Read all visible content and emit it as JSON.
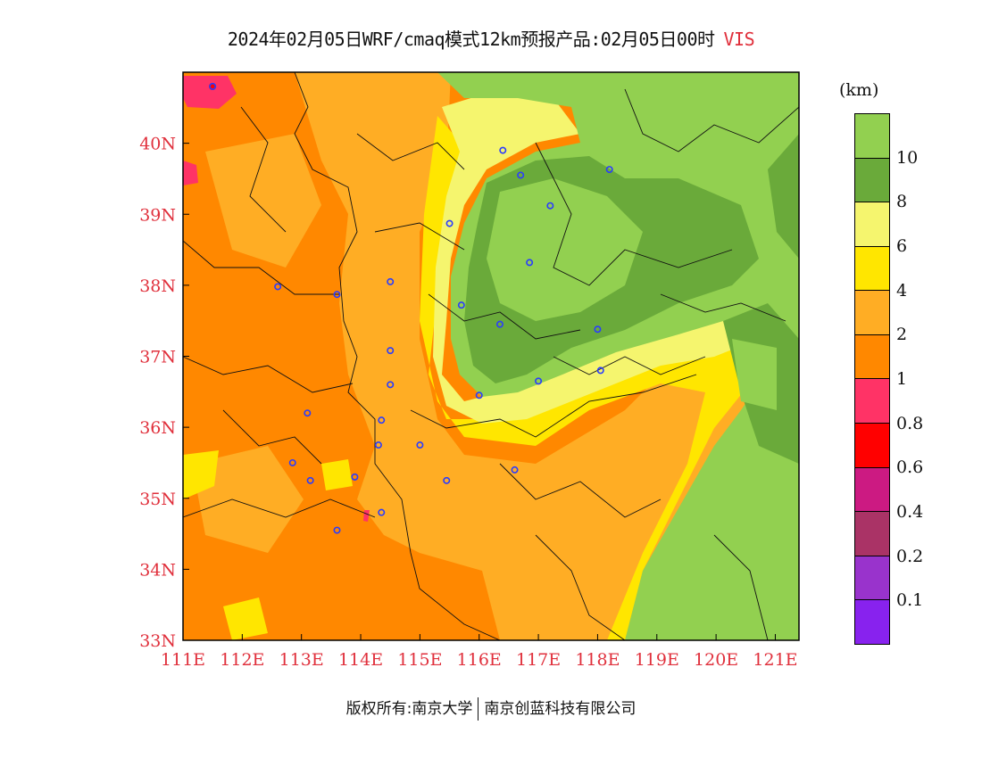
{
  "title": {
    "text": "2024年02月05日WRF/cmaq模式12km预报产品:02月05日00时",
    "variable": "VIS",
    "variable_color": "#e0303c"
  },
  "map": {
    "lon_range": [
      111,
      121.4
    ],
    "lat_range": [
      33,
      41
    ],
    "x_ticks": [
      {
        "value": 111,
        "label": "111E"
      },
      {
        "value": 112,
        "label": "112E"
      },
      {
        "value": 113,
        "label": "113E"
      },
      {
        "value": 114,
        "label": "114E"
      },
      {
        "value": 115,
        "label": "115E"
      },
      {
        "value": 116,
        "label": "116E"
      },
      {
        "value": 117,
        "label": "117E"
      },
      {
        "value": 118,
        "label": "118E"
      },
      {
        "value": 119,
        "label": "119E"
      },
      {
        "value": 120,
        "label": "120E"
      },
      {
        "value": 121,
        "label": "121E"
      }
    ],
    "y_ticks": [
      {
        "value": 33,
        "label": "33N"
      },
      {
        "value": 34,
        "label": "34N"
      },
      {
        "value": 35,
        "label": "35N"
      },
      {
        "value": 36,
        "label": "36N"
      },
      {
        "value": 37,
        "label": "37N"
      },
      {
        "value": 38,
        "label": "38N"
      },
      {
        "value": 39,
        "label": "39N"
      },
      {
        "value": 40,
        "label": "40N"
      }
    ],
    "tick_label_color": "#e0303c",
    "station_color": "#2a3cff",
    "stations": [
      [
        111.5,
        40.8
      ],
      [
        112.6,
        37.98
      ],
      [
        113.6,
        37.87
      ],
      [
        114.5,
        38.05
      ],
      [
        114.5,
        37.08
      ],
      [
        114.5,
        36.6
      ],
      [
        114.35,
        36.1
      ],
      [
        113.1,
        36.2
      ],
      [
        112.85,
        35.5
      ],
      [
        113.15,
        35.25
      ],
      [
        113.9,
        35.3
      ],
      [
        114.3,
        35.75
      ],
      [
        115.0,
        35.75
      ],
      [
        115.45,
        35.25
      ],
      [
        114.35,
        34.8
      ],
      [
        113.6,
        34.55
      ],
      [
        116.4,
        39.9
      ],
      [
        116.7,
        39.55
      ],
      [
        117.2,
        39.12
      ],
      [
        118.2,
        39.63
      ],
      [
        115.5,
        38.87
      ],
      [
        116.85,
        38.32
      ],
      [
        115.7,
        37.72
      ],
      [
        116.35,
        37.45
      ],
      [
        118.0,
        37.38
      ],
      [
        118.05,
        36.8
      ],
      [
        117.0,
        36.65
      ],
      [
        116.0,
        36.45
      ],
      [
        116.6,
        35.4
      ]
    ]
  },
  "legend": {
    "unit": "(km)",
    "colors_top_to_bottom": [
      "#92d050",
      "#6aaa3a",
      "#f5f56e",
      "#ffe600",
      "#ffad24",
      "#ff8800",
      "#ff3366",
      "#ff0000",
      "#cc1a82",
      "#aa3366",
      "#9933cc",
      "#8822ee"
    ],
    "labels_top_to_bottom": [
      "10",
      "8",
      "6",
      "4",
      "2",
      "1",
      "0.8",
      "0.6",
      "0.4",
      "0.2",
      "0.1"
    ]
  },
  "footer": {
    "left": "版权所有:南京大学",
    "right": "南京创蓝科技有限公司"
  }
}
